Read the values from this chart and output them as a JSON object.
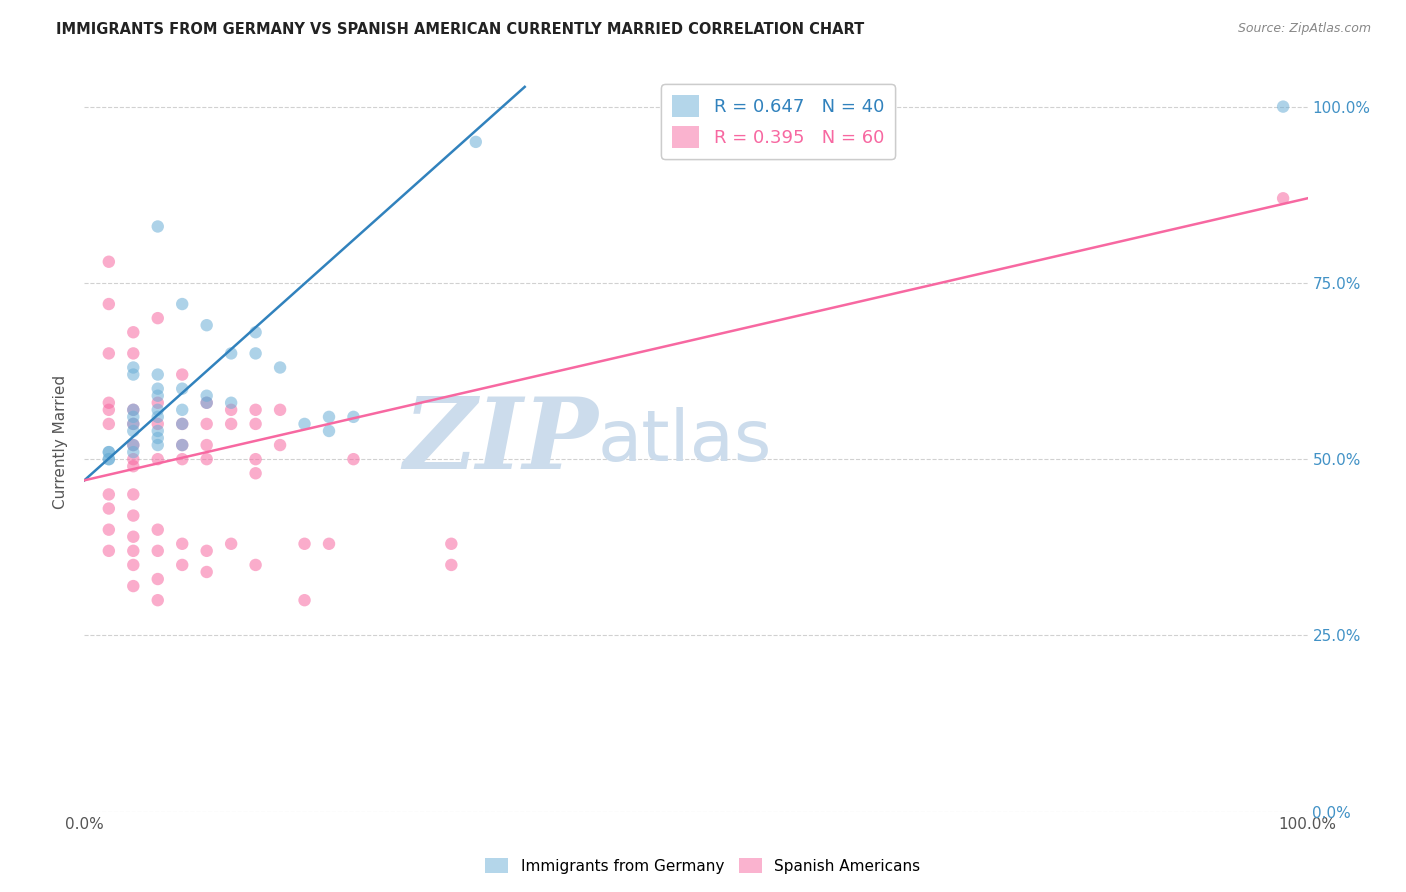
{
  "title": "IMMIGRANTS FROM GERMANY VS SPANISH AMERICAN CURRENTLY MARRIED CORRELATION CHART",
  "source": "Source: ZipAtlas.com",
  "ylabel": "Currently Married",
  "watermark_zip": "ZIP",
  "watermark_atlas": "atlas",
  "blue_R": 0.647,
  "blue_N": 40,
  "pink_R": 0.395,
  "pink_N": 60,
  "blue_scatter_x": [
    0.32,
    0.06,
    0.08,
    0.1,
    0.14,
    0.12,
    0.14,
    0.16,
    0.04,
    0.04,
    0.06,
    0.06,
    0.08,
    0.06,
    0.1,
    0.1,
    0.12,
    0.06,
    0.08,
    0.04,
    0.04,
    0.2,
    0.22,
    0.06,
    0.08,
    0.04,
    0.18,
    0.2,
    0.04,
    0.06,
    0.06,
    0.08,
    0.06,
    0.04,
    0.04,
    0.02,
    0.02,
    0.02,
    0.02,
    0.98
  ],
  "blue_scatter_y": [
    0.95,
    0.83,
    0.72,
    0.69,
    0.68,
    0.65,
    0.65,
    0.63,
    0.63,
    0.62,
    0.62,
    0.6,
    0.6,
    0.59,
    0.59,
    0.58,
    0.58,
    0.57,
    0.57,
    0.57,
    0.56,
    0.56,
    0.56,
    0.56,
    0.55,
    0.55,
    0.55,
    0.54,
    0.54,
    0.54,
    0.53,
    0.52,
    0.52,
    0.52,
    0.51,
    0.51,
    0.51,
    0.5,
    0.5,
    1.0
  ],
  "pink_scatter_x": [
    0.02,
    0.02,
    0.02,
    0.02,
    0.02,
    0.02,
    0.04,
    0.04,
    0.04,
    0.04,
    0.04,
    0.04,
    0.04,
    0.06,
    0.06,
    0.06,
    0.06,
    0.08,
    0.08,
    0.08,
    0.08,
    0.1,
    0.1,
    0.1,
    0.1,
    0.12,
    0.12,
    0.12,
    0.14,
    0.14,
    0.14,
    0.14,
    0.16,
    0.16,
    0.18,
    0.2,
    0.22,
    0.3,
    0.02,
    0.02,
    0.02,
    0.02,
    0.04,
    0.04,
    0.04,
    0.04,
    0.04,
    0.04,
    0.06,
    0.06,
    0.06,
    0.06,
    0.08,
    0.08,
    0.1,
    0.1,
    0.14,
    0.18,
    0.3,
    0.98
  ],
  "pink_scatter_y": [
    0.78,
    0.72,
    0.65,
    0.58,
    0.57,
    0.55,
    0.68,
    0.65,
    0.57,
    0.55,
    0.52,
    0.5,
    0.49,
    0.7,
    0.58,
    0.55,
    0.5,
    0.62,
    0.55,
    0.52,
    0.5,
    0.58,
    0.55,
    0.52,
    0.5,
    0.57,
    0.55,
    0.38,
    0.57,
    0.55,
    0.5,
    0.48,
    0.57,
    0.52,
    0.38,
    0.38,
    0.5,
    0.38,
    0.45,
    0.43,
    0.4,
    0.37,
    0.45,
    0.42,
    0.39,
    0.37,
    0.35,
    0.32,
    0.4,
    0.37,
    0.33,
    0.3,
    0.38,
    0.35,
    0.37,
    0.34,
    0.35,
    0.3,
    0.35,
    0.87
  ],
  "blue_line_x": [
    0.0,
    0.36
  ],
  "blue_line_y_start": 0.47,
  "blue_line_slope": 1.55,
  "pink_line_x": [
    0.0,
    1.0
  ],
  "pink_line_y_start": 0.47,
  "pink_line_slope": 0.4,
  "scatter_alpha": 0.55,
  "scatter_size": 80,
  "blue_color": "#6baed6",
  "pink_color": "#f768a1",
  "blue_line_color": "#3182bd",
  "pink_line_color": "#f768a1",
  "grid_color": "#cccccc",
  "background_color": "#ffffff",
  "watermark_color": "#ccdcec",
  "xlim": [
    0.0,
    1.0
  ],
  "ylim": [
    0.0,
    1.05
  ],
  "yticks": [
    0.0,
    0.25,
    0.5,
    0.75,
    1.0
  ],
  "ytick_labels_right": [
    "0.0%",
    "25.0%",
    "50.0%",
    "75.0%",
    "100.0%"
  ],
  "xtick_labels": [
    "0.0%",
    "",
    "",
    "",
    "",
    "100.0%"
  ],
  "legend_R_blue": "R = 0.647",
  "legend_N_blue": "N = 40",
  "legend_R_pink": "R = 0.395",
  "legend_N_pink": "N = 60"
}
